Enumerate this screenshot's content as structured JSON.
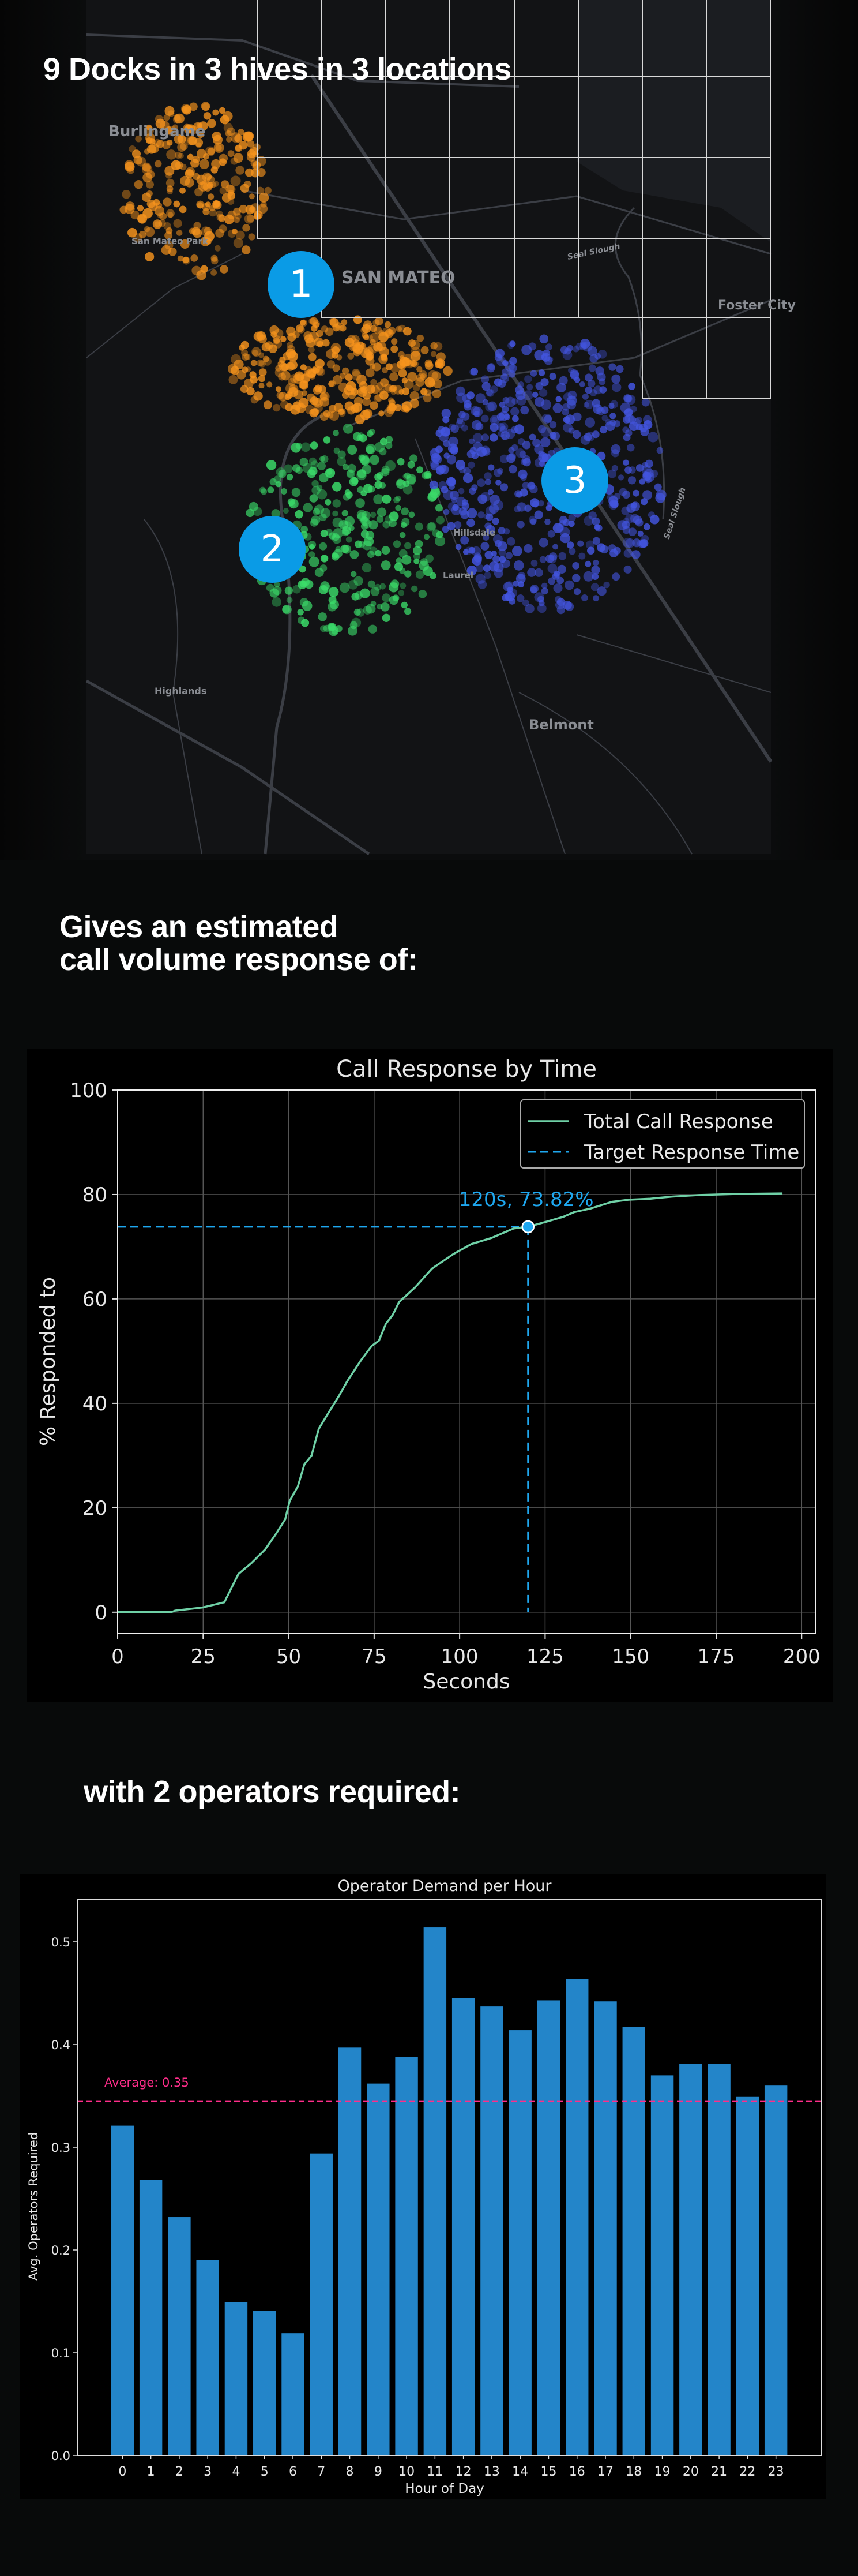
{
  "map_section": {
    "headline": "9 Docks in 3 hives in 3 locations",
    "hives": [
      {
        "label": "1",
        "color": "#f7941d"
      },
      {
        "label": "2",
        "color": "#3bdc6a"
      },
      {
        "label": "3",
        "color": "#4355e0"
      }
    ],
    "badge_color": "#0a9be6",
    "place_labels": [
      "Burlingame",
      "San Mateo Park",
      "SAN MATEO",
      "Foster City",
      "Hillsdale",
      "Laurel",
      "Highlands",
      "Belmont",
      "Seal Slough",
      "Seal Slough"
    ]
  },
  "response_section": {
    "headline_line1": "Gives an estimated",
    "headline_line2": "call volume response of:"
  },
  "operators_section": {
    "headline": "with 2 operators required:"
  },
  "chart_data": [
    {
      "type": "line",
      "title": "Call Response by Time",
      "xlabel": "Seconds",
      "ylabel": "% Responded to",
      "xlim": [
        0,
        204
      ],
      "ylim": [
        -4,
        100
      ],
      "xticks": [
        0,
        25,
        50,
        75,
        100,
        125,
        150,
        175,
        200
      ],
      "yticks": [
        0,
        20,
        40,
        60,
        80,
        100
      ],
      "grid": true,
      "legend_position": "top-right",
      "series": [
        {
          "name": "Total Call Response",
          "color": "#6fd0a6",
          "x": [
            0,
            15.7,
            16.8,
            24.8,
            31.2,
            35.3,
            39.1,
            43.1,
            46.3,
            49,
            50.3,
            52.7,
            54.6,
            56.7,
            58.8,
            61,
            64.7,
            67.1,
            71.1,
            74.3,
            76.4,
            78.4,
            80.4,
            82.3,
            87.1,
            91.9,
            98.2,
            103.4,
            109.4,
            112.6,
            115.8,
            120,
            125.4,
            130.2,
            133.4,
            138.2,
            144.6,
            149.4,
            155.8,
            162.1,
            170.1,
            181.3,
            194.4
          ],
          "y": [
            0,
            0,
            0.3,
            0.9,
            1.9,
            7.3,
            9.4,
            12,
            15,
            17.8,
            21.3,
            24.1,
            28.3,
            30,
            35.1,
            37.5,
            41.4,
            44.2,
            48.2,
            51,
            52,
            55.2,
            56.9,
            59.4,
            62.3,
            65.8,
            68.6,
            70.5,
            71.7,
            72.6,
            73.5,
            73.82,
            74.8,
            75.7,
            76.6,
            77.3,
            78.6,
            79,
            79.2,
            79.6,
            79.9,
            80.1,
            80.2
          ]
        },
        {
          "name": "Target Response Time",
          "color": "#1ea7ef",
          "style": "dashed",
          "target_x": 120,
          "target_y": 73.82
        }
      ],
      "annotation": "120s, 73.82%"
    },
    {
      "type": "bar",
      "title": "Operator Demand per Hour",
      "xlabel": "Hour of Day",
      "ylabel": "Avg. Operators Required",
      "categories": [
        "0",
        "1",
        "2",
        "3",
        "4",
        "5",
        "6",
        "7",
        "8",
        "9",
        "10",
        "11",
        "12",
        "13",
        "14",
        "15",
        "16",
        "17",
        "18",
        "19",
        "20",
        "21",
        "22",
        "23"
      ],
      "values": [
        0.321,
        0.268,
        0.232,
        0.19,
        0.149,
        0.141,
        0.119,
        0.294,
        0.397,
        0.362,
        0.388,
        0.514,
        0.445,
        0.437,
        0.414,
        0.443,
        0.464,
        0.442,
        0.417,
        0.37,
        0.381,
        0.381,
        0.349,
        0.36
      ],
      "ylim": [
        0,
        0.541
      ],
      "yticks": [
        "0.0",
        "0.1",
        "0.2",
        "0.3",
        "0.4",
        "0.5"
      ],
      "bar_color": "#2385c9",
      "average": 0.345,
      "average_label": "Average: 0.35",
      "average_color": "#ff2d8a",
      "grid": false
    }
  ]
}
